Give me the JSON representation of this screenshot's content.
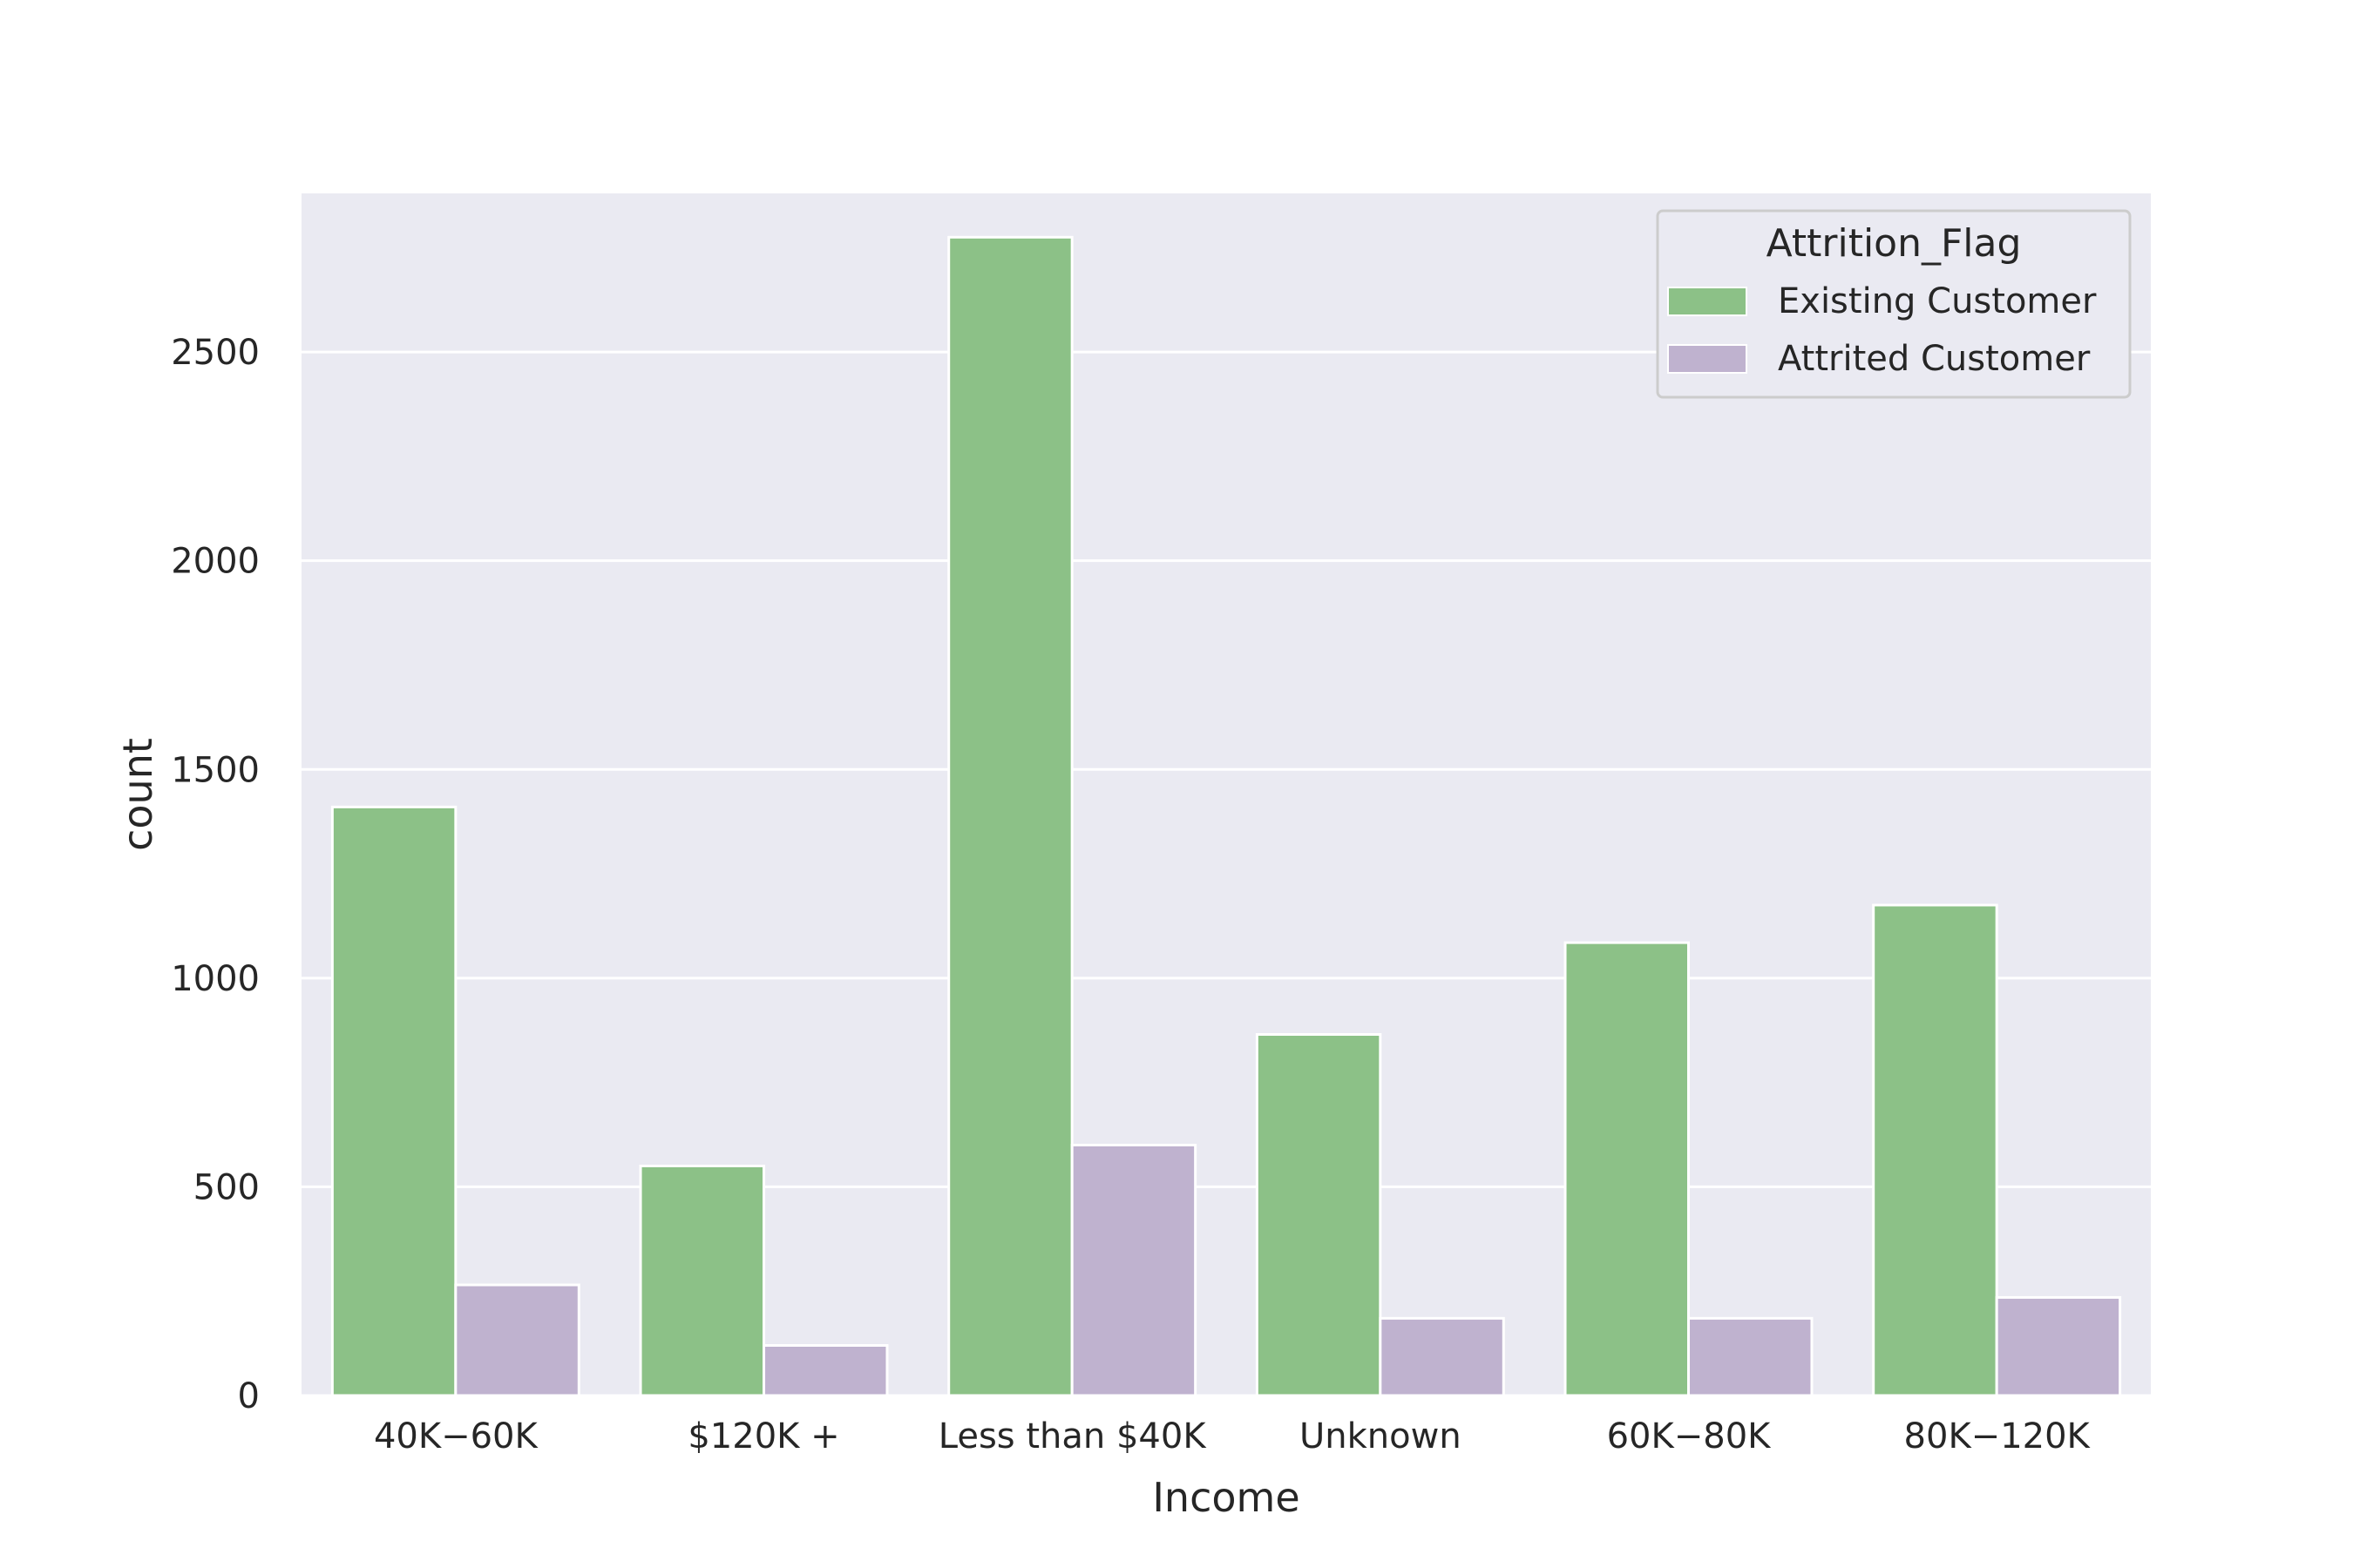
{
  "chart_data": {
    "type": "bar",
    "title": "",
    "xlabel": "Income",
    "ylabel": "count",
    "categories": [
      "40K−60K",
      "$120K +",
      "Less than $40K",
      "Unknown",
      "60K−80K",
      "80K−120K"
    ],
    "series": [
      {
        "name": "Existing Customer",
        "color": "#8cc187",
        "values": [
          1410,
          550,
          2775,
          865,
          1085,
          1175
        ]
      },
      {
        "name": "Attrited Customer",
        "color": "#bfb2cf",
        "values": [
          265,
          120,
          600,
          185,
          185,
          235
        ]
      }
    ],
    "yticks": [
      0,
      500,
      1000,
      1500,
      2000,
      2500
    ],
    "ylim": [
      0,
      2880
    ],
    "grid": true,
    "legend": {
      "title": "Attrition_Flag",
      "placement": "top-right"
    },
    "colors": {
      "background": "#eaeaf2",
      "grid": "#ffffff",
      "text": "#262626"
    }
  }
}
